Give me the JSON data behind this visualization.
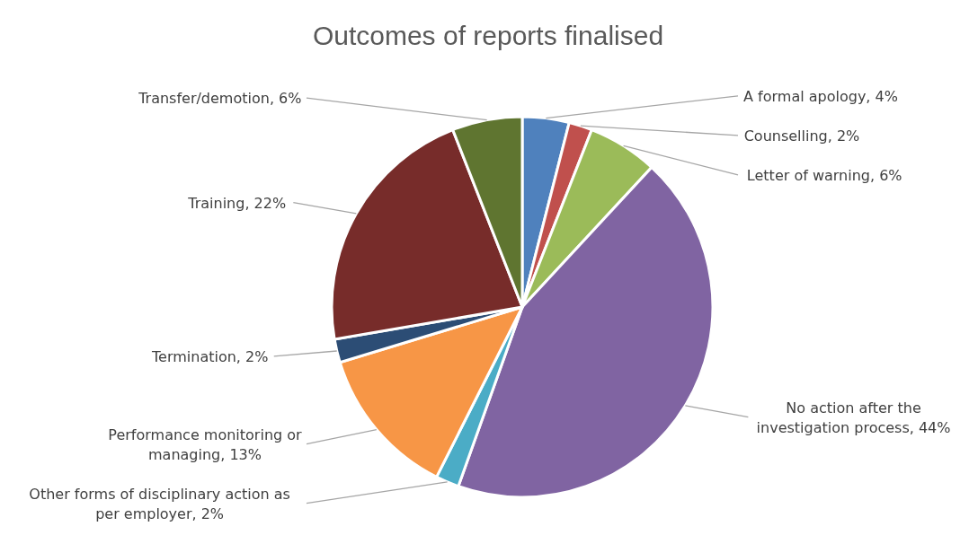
{
  "chart_data": {
    "type": "pie",
    "title": "Outcomes of reports finalised",
    "categories": [
      "A formal apology",
      "Counselling",
      "Letter of warning",
      "No action after the investigation process",
      "Other forms of disciplinary action as per employer",
      "Performance monitoring or managing",
      "Termination",
      "Training",
      "Transfer/demotion"
    ],
    "values": [
      4,
      2,
      6,
      44,
      2,
      13,
      2,
      22,
      6
    ],
    "value_labels": [
      "4%",
      "2%",
      "6%",
      "44%",
      "2%",
      "13%",
      "2%",
      "22%",
      "6%"
    ],
    "colors": [
      "#4f81bd",
      "#c0504d",
      "#9bbb59",
      "#8064a2",
      "#4bacc6",
      "#f79646",
      "#2c4d75",
      "#772c2a",
      "#5f7530"
    ],
    "legend": false
  }
}
